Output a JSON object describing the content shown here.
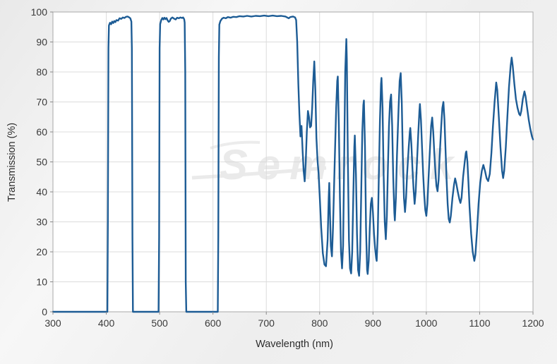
{
  "chart_data": {
    "type": "line",
    "title": "",
    "xlabel": "Wavelength (nm)",
    "ylabel": "Transmission (%)",
    "xlim": [
      300,
      1200
    ],
    "ylim": [
      0,
      100
    ],
    "x_ticks": [
      300,
      400,
      500,
      600,
      700,
      800,
      900,
      1000,
      1100,
      1200
    ],
    "y_ticks": [
      0,
      10,
      20,
      30,
      40,
      50,
      60,
      70,
      80,
      90,
      100
    ],
    "grid": true,
    "legend": "none",
    "watermark": "Semrock",
    "colors": {
      "line": "#1d5c95",
      "grid": "#dcdcdc",
      "plot_border": "#a8a8a8",
      "plot_bg": "#ffffff",
      "tick": "#8a8a8a",
      "watermark": "#d9d9d9"
    },
    "series": [
      {
        "name": "Transmission",
        "points": [
          [
            300,
            0
          ],
          [
            402,
            0
          ],
          [
            403,
            30
          ],
          [
            404,
            88
          ],
          [
            405,
            95.5
          ],
          [
            407,
            96.4
          ],
          [
            409,
            95.9
          ],
          [
            411,
            96.8
          ],
          [
            413,
            96.3
          ],
          [
            415,
            97.0
          ],
          [
            417,
            96.6
          ],
          [
            419,
            97.3
          ],
          [
            422,
            97.1
          ],
          [
            425,
            97.9
          ],
          [
            428,
            97.7
          ],
          [
            431,
            98.2
          ],
          [
            434,
            98.0
          ],
          [
            437,
            98.4
          ],
          [
            440,
            98.5
          ],
          [
            443,
            98.2
          ],
          [
            445,
            97.9
          ],
          [
            447,
            96.8
          ],
          [
            448,
            88
          ],
          [
            449,
            25
          ],
          [
            450,
            0
          ],
          [
            498,
            0
          ],
          [
            499,
            25
          ],
          [
            500,
            88
          ],
          [
            501,
            96
          ],
          [
            503,
            97.3
          ],
          [
            505,
            98.0
          ],
          [
            507,
            97.5
          ],
          [
            509,
            98.1
          ],
          [
            511,
            97.6
          ],
          [
            513,
            98.0
          ],
          [
            515,
            97.2
          ],
          [
            517,
            96.7
          ],
          [
            519,
            97.0
          ],
          [
            521,
            97.8
          ],
          [
            524,
            98.2
          ],
          [
            527,
            97.8
          ],
          [
            530,
            97.5
          ],
          [
            533,
            98.1
          ],
          [
            536,
            97.9
          ],
          [
            539,
            98.2
          ],
          [
            542,
            98.0
          ],
          [
            544,
            98.2
          ],
          [
            546,
            97.6
          ],
          [
            547,
            96.5
          ],
          [
            548,
            80
          ],
          [
            549,
            10
          ],
          [
            550,
            0
          ],
          [
            609,
            0
          ],
          [
            610,
            25
          ],
          [
            611,
            85
          ],
          [
            612,
            95.8
          ],
          [
            614,
            97.0
          ],
          [
            617,
            97.8
          ],
          [
            620,
            98.1
          ],
          [
            624,
            97.9
          ],
          [
            628,
            98.3
          ],
          [
            633,
            98.1
          ],
          [
            638,
            98.4
          ],
          [
            644,
            98.3
          ],
          [
            650,
            98.6
          ],
          [
            657,
            98.5
          ],
          [
            664,
            98.7
          ],
          [
            672,
            98.5
          ],
          [
            680,
            98.7
          ],
          [
            688,
            98.6
          ],
          [
            696,
            98.8
          ],
          [
            704,
            98.6
          ],
          [
            712,
            98.8
          ],
          [
            720,
            98.6
          ],
          [
            728,
            98.7
          ],
          [
            736,
            98.5
          ],
          [
            742,
            97.9
          ],
          [
            745,
            98.3
          ],
          [
            750,
            98.5
          ],
          [
            754,
            98.2
          ],
          [
            756,
            97.3
          ],
          [
            758,
            90
          ],
          [
            760,
            76
          ],
          [
            762,
            66
          ],
          [
            764,
            58.5
          ],
          [
            766,
            62
          ],
          [
            768,
            54
          ],
          [
            770,
            47
          ],
          [
            772,
            43.5
          ],
          [
            774,
            50
          ],
          [
            776,
            60
          ],
          [
            778,
            67
          ],
          [
            780,
            65
          ],
          [
            782,
            61.5
          ],
          [
            784,
            62
          ],
          [
            786,
            68
          ],
          [
            788,
            77
          ],
          [
            790,
            83.5
          ],
          [
            792,
            74
          ],
          [
            794,
            58
          ],
          [
            796,
            50.5
          ],
          [
            798,
            46
          ],
          [
            800,
            39
          ],
          [
            803,
            28
          ],
          [
            806,
            19.5
          ],
          [
            809,
            15.8
          ],
          [
            812,
            15.2
          ],
          [
            815,
            24
          ],
          [
            817,
            38
          ],
          [
            818,
            43
          ],
          [
            819,
            36
          ],
          [
            821,
            22
          ],
          [
            823,
            18.5
          ],
          [
            825,
            28
          ],
          [
            828,
            48
          ],
          [
            831,
            68
          ],
          [
            833,
            77
          ],
          [
            834,
            78.5
          ],
          [
            836,
            62
          ],
          [
            838,
            38
          ],
          [
            840,
            20
          ],
          [
            842,
            14.5
          ],
          [
            844,
            22
          ],
          [
            846,
            50
          ],
          [
            848,
            80
          ],
          [
            850,
            91
          ],
          [
            851,
            84
          ],
          [
            853,
            50
          ],
          [
            855,
            24
          ],
          [
            857,
            14.5
          ],
          [
            859,
            12.8
          ],
          [
            861,
            20
          ],
          [
            863,
            38
          ],
          [
            865,
            55
          ],
          [
            866,
            58.8
          ],
          [
            868,
            46
          ],
          [
            870,
            26
          ],
          [
            872,
            14
          ],
          [
            874,
            12
          ],
          [
            876,
            20
          ],
          [
            878,
            40
          ],
          [
            880,
            60
          ],
          [
            882,
            69
          ],
          [
            883,
            70.5
          ],
          [
            885,
            55
          ],
          [
            887,
            28
          ],
          [
            889,
            14
          ],
          [
            890,
            12.6
          ],
          [
            892,
            17
          ],
          [
            894,
            28
          ],
          [
            896,
            36
          ],
          [
            898,
            38
          ],
          [
            900,
            33
          ],
          [
            902,
            26
          ],
          [
            904,
            21
          ],
          [
            906,
            17.8
          ],
          [
            907,
            17
          ],
          [
            909,
            26
          ],
          [
            911,
            45
          ],
          [
            913,
            64
          ],
          [
            915,
            76
          ],
          [
            916,
            78
          ],
          [
            918,
            68
          ],
          [
            920,
            46
          ],
          [
            922,
            30
          ],
          [
            924,
            24.2
          ],
          [
            926,
            32
          ],
          [
            928,
            48
          ],
          [
            930,
            62
          ],
          [
            932,
            70
          ],
          [
            934,
            72.5
          ],
          [
            936,
            62
          ],
          [
            938,
            45
          ],
          [
            940,
            33
          ],
          [
            941,
            30.5
          ],
          [
            943,
            38
          ],
          [
            945,
            52
          ],
          [
            948,
            68
          ],
          [
            950,
            77
          ],
          [
            952,
            79.6
          ],
          [
            954,
            70
          ],
          [
            956,
            52
          ],
          [
            958,
            38
          ],
          [
            960,
            33.3
          ],
          [
            962,
            38
          ],
          [
            964,
            46
          ],
          [
            967,
            55
          ],
          [
            969,
            60
          ],
          [
            970,
            61.3
          ],
          [
            972,
            56
          ],
          [
            974,
            48
          ],
          [
            976,
            41
          ],
          [
            978,
            36
          ],
          [
            980,
            40
          ],
          [
            982,
            48
          ],
          [
            985,
            60
          ],
          [
            987,
            67
          ],
          [
            988,
            69.3
          ],
          [
            990,
            64
          ],
          [
            992,
            55
          ],
          [
            994,
            46
          ],
          [
            996,
            39
          ],
          [
            998,
            34
          ],
          [
            1000,
            32
          ],
          [
            1002,
            36
          ],
          [
            1004,
            44
          ],
          [
            1007,
            55
          ],
          [
            1009,
            62
          ],
          [
            1011,
            64.8
          ],
          [
            1013,
            60
          ],
          [
            1015,
            53
          ],
          [
            1017,
            47
          ],
          [
            1019,
            42
          ],
          [
            1021,
            40.2
          ],
          [
            1023,
            44
          ],
          [
            1025,
            52
          ],
          [
            1028,
            62
          ],
          [
            1030,
            68
          ],
          [
            1032,
            70
          ],
          [
            1034,
            64
          ],
          [
            1036,
            54
          ],
          [
            1038,
            44
          ],
          [
            1040,
            36
          ],
          [
            1042,
            31
          ],
          [
            1044,
            29.8
          ],
          [
            1046,
            32
          ],
          [
            1049,
            38
          ],
          [
            1052,
            42.5
          ],
          [
            1054,
            44.5
          ],
          [
            1056,
            43
          ],
          [
            1059,
            40
          ],
          [
            1062,
            37.5
          ],
          [
            1064,
            36.3
          ],
          [
            1066,
            38
          ],
          [
            1069,
            45
          ],
          [
            1072,
            50
          ],
          [
            1074,
            53
          ],
          [
            1075,
            53.5
          ],
          [
            1077,
            50
          ],
          [
            1079,
            43
          ],
          [
            1081,
            35
          ],
          [
            1084,
            26
          ],
          [
            1087,
            20
          ],
          [
            1090,
            17
          ],
          [
            1092,
            19
          ],
          [
            1095,
            27
          ],
          [
            1098,
            36
          ],
          [
            1101,
            43
          ],
          [
            1104,
            47
          ],
          [
            1107,
            49
          ],
          [
            1110,
            47
          ],
          [
            1113,
            44.5
          ],
          [
            1116,
            43.6
          ],
          [
            1119,
            46
          ],
          [
            1122,
            53
          ],
          [
            1125,
            62
          ],
          [
            1128,
            70
          ],
          [
            1131,
            76.5
          ],
          [
            1133,
            74
          ],
          [
            1136,
            65
          ],
          [
            1139,
            55
          ],
          [
            1142,
            47
          ],
          [
            1144,
            44.6
          ],
          [
            1146,
            47
          ],
          [
            1149,
            55
          ],
          [
            1152,
            65
          ],
          [
            1155,
            75
          ],
          [
            1158,
            82
          ],
          [
            1160,
            84.8
          ],
          [
            1162,
            82
          ],
          [
            1165,
            76
          ],
          [
            1168,
            71
          ],
          [
            1171,
            68
          ],
          [
            1174,
            66
          ],
          [
            1176,
            65.5
          ],
          [
            1178,
            67
          ],
          [
            1181,
            71
          ],
          [
            1184,
            73.5
          ],
          [
            1186,
            72
          ],
          [
            1189,
            68
          ],
          [
            1192,
            64
          ],
          [
            1195,
            61
          ],
          [
            1198,
            58.5
          ],
          [
            1200,
            57.5
          ]
        ]
      }
    ]
  }
}
